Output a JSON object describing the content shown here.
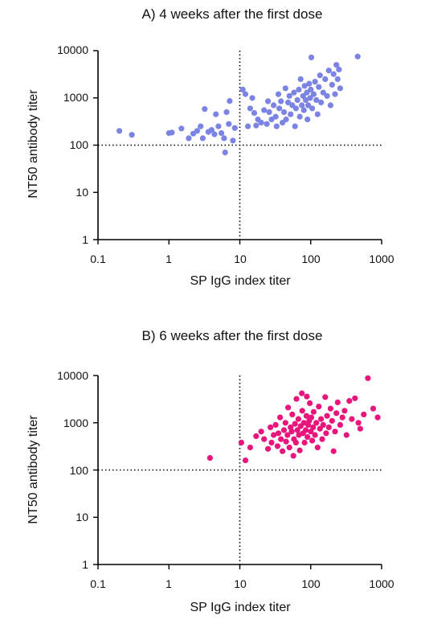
{
  "chart_data": [
    {
      "type": "scatter",
      "title": "A) 4 weeks after the first dose",
      "xlabel": "SP IgG index titer",
      "ylabel": "NT50 antibody titer",
      "xscale": "log",
      "yscale": "log",
      "xlim": [
        0.1,
        1000
      ],
      "ylim": [
        1,
        10000
      ],
      "xticks": [
        "0.1",
        "1",
        "10",
        "100",
        "1000"
      ],
      "yticks": [
        "1",
        "10",
        "100",
        "1000",
        "10000"
      ],
      "reference_lines": {
        "x": 10,
        "y": 100
      },
      "color": "#7b83e3",
      "points": [
        [
          0.2,
          200
        ],
        [
          0.3,
          165
        ],
        [
          1,
          180
        ],
        [
          1.1,
          185
        ],
        [
          1.5,
          225
        ],
        [
          1.9,
          140
        ],
        [
          2.2,
          175
        ],
        [
          2.5,
          200
        ],
        [
          2.8,
          250
        ],
        [
          3,
          140
        ],
        [
          3.2,
          580
        ],
        [
          3.6,
          190
        ],
        [
          4,
          210
        ],
        [
          4.4,
          170
        ],
        [
          4.6,
          450
        ],
        [
          5,
          250
        ],
        [
          5.5,
          180
        ],
        [
          6,
          140
        ],
        [
          6.2,
          70
        ],
        [
          6.5,
          500
        ],
        [
          7,
          280
        ],
        [
          7.2,
          860
        ],
        [
          8,
          125
        ],
        [
          8.5,
          230
        ],
        [
          11,
          1500
        ],
        [
          12,
          1200
        ],
        [
          13,
          250
        ],
        [
          14,
          600
        ],
        [
          15,
          1000
        ],
        [
          16,
          480
        ],
        [
          17,
          260
        ],
        [
          18,
          350
        ],
        [
          20,
          300
        ],
        [
          22,
          550
        ],
        [
          24,
          280
        ],
        [
          25,
          850
        ],
        [
          26,
          500
        ],
        [
          28,
          350
        ],
        [
          30,
          700
        ],
        [
          32,
          400
        ],
        [
          33,
          250
        ],
        [
          35,
          1200
        ],
        [
          36,
          600
        ],
        [
          38,
          850
        ],
        [
          40,
          300
        ],
        [
          42,
          500
        ],
        [
          44,
          1600
        ],
        [
          45,
          350
        ],
        [
          48,
          800
        ],
        [
          50,
          1100
        ],
        [
          52,
          450
        ],
        [
          55,
          700
        ],
        [
          58,
          1300
        ],
        [
          60,
          250
        ],
        [
          62,
          600
        ],
        [
          65,
          900
        ],
        [
          68,
          1500
        ],
        [
          70,
          400
        ],
        [
          72,
          2500
        ],
        [
          75,
          700
        ],
        [
          78,
          1100
        ],
        [
          80,
          550
        ],
        [
          82,
          1800
        ],
        [
          85,
          900
        ],
        [
          88,
          1300
        ],
        [
          90,
          350
        ],
        [
          92,
          700
        ],
        [
          95,
          2000
        ],
        [
          98,
          1000
        ],
        [
          100,
          1500
        ],
        [
          102,
          7200
        ],
        [
          105,
          600
        ],
        [
          110,
          1200
        ],
        [
          115,
          2200
        ],
        [
          120,
          900
        ],
        [
          125,
          450
        ],
        [
          130,
          1700
        ],
        [
          135,
          3000
        ],
        [
          140,
          800
        ],
        [
          150,
          1300
        ],
        [
          160,
          2500
        ],
        [
          170,
          1100
        ],
        [
          180,
          3800
        ],
        [
          190,
          700
        ],
        [
          200,
          1900
        ],
        [
          210,
          3200
        ],
        [
          220,
          1200
        ],
        [
          230,
          5000
        ],
        [
          240,
          2500
        ],
        [
          250,
          4000
        ],
        [
          260,
          1600
        ],
        [
          460,
          7500
        ]
      ]
    },
    {
      "type": "scatter",
      "title": "B) 6 weeks after the first dose",
      "xlabel": "SP IgG index titer",
      "ylabel": "NT50 antibody titer",
      "xscale": "log",
      "yscale": "log",
      "xlim": [
        0.1,
        1000
      ],
      "ylim": [
        1,
        10000
      ],
      "xticks": [
        "0.1",
        "1",
        "10",
        "100",
        "1000"
      ],
      "yticks": [
        "1",
        "10",
        "100",
        "1000",
        "10000"
      ],
      "reference_lines": {
        "x": 10,
        "y": 100
      },
      "color": "#e8167c",
      "points": [
        [
          3.8,
          180
        ],
        [
          10.5,
          380
        ],
        [
          12,
          160
        ],
        [
          14,
          300
        ],
        [
          17,
          520
        ],
        [
          20,
          650
        ],
        [
          22,
          450
        ],
        [
          25,
          280
        ],
        [
          27,
          800
        ],
        [
          28,
          380
        ],
        [
          30,
          550
        ],
        [
          32,
          900
        ],
        [
          34,
          320
        ],
        [
          35,
          600
        ],
        [
          37,
          1300
        ],
        [
          38,
          450
        ],
        [
          40,
          250
        ],
        [
          42,
          700
        ],
        [
          44,
          1000
        ],
        [
          45,
          400
        ],
        [
          47,
          550
        ],
        [
          48,
          2100
        ],
        [
          50,
          300
        ],
        [
          52,
          800
        ],
        [
          54,
          650
        ],
        [
          55,
          1500
        ],
        [
          57,
          200
        ],
        [
          58,
          450
        ],
        [
          60,
          950
        ],
        [
          62,
          380
        ],
        [
          63,
          3200
        ],
        [
          65,
          700
        ],
        [
          67,
          1200
        ],
        [
          68,
          550
        ],
        [
          70,
          260
        ],
        [
          72,
          850
        ],
        [
          75,
          4200
        ],
        [
          76,
          1800
        ],
        [
          78,
          600
        ],
        [
          80,
          1000
        ],
        [
          82,
          380
        ],
        [
          85,
          700
        ],
        [
          87,
          1400
        ],
        [
          88,
          3600
        ],
        [
          90,
          500
        ],
        [
          92,
          900
        ],
        [
          95,
          1100
        ],
        [
          97,
          2600
        ],
        [
          100,
          650
        ],
        [
          102,
          1300
        ],
        [
          105,
          420
        ],
        [
          108,
          800
        ],
        [
          110,
          1700
        ],
        [
          115,
          550
        ],
        [
          120,
          1000
        ],
        [
          125,
          300
        ],
        [
          130,
          2200
        ],
        [
          135,
          750
        ],
        [
          140,
          1200
        ],
        [
          145,
          450
        ],
        [
          150,
          900
        ],
        [
          160,
          3500
        ],
        [
          165,
          600
        ],
        [
          170,
          1400
        ],
        [
          180,
          800
        ],
        [
          190,
          2000
        ],
        [
          200,
          1100
        ],
        [
          210,
          250
        ],
        [
          220,
          650
        ],
        [
          230,
          1600
        ],
        [
          240,
          2700
        ],
        [
          260,
          900
        ],
        [
          280,
          1300
        ],
        [
          300,
          1800
        ],
        [
          320,
          550
        ],
        [
          350,
          2900
        ],
        [
          380,
          1200
        ],
        [
          420,
          3300
        ],
        [
          470,
          1000
        ],
        [
          500,
          750
        ],
        [
          560,
          1500
        ],
        [
          640,
          8800
        ],
        [
          760,
          2000
        ],
        [
          880,
          1300
        ]
      ]
    }
  ]
}
